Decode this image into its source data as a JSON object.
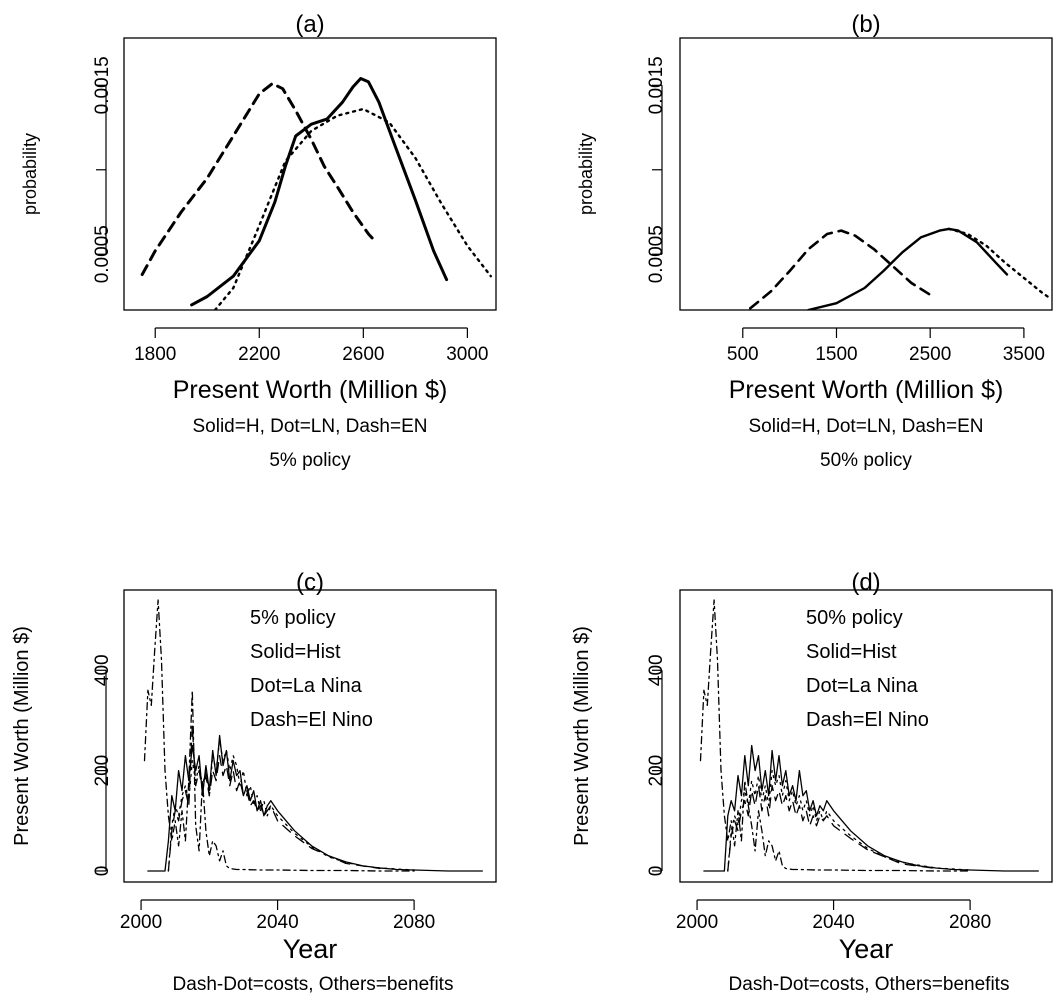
{
  "chart_data": [
    {
      "panel": "a",
      "type": "line",
      "title": "(a)",
      "xlabel": "Present Worth (Million $)",
      "ylabel": "probability",
      "subtitle_lines": [
        "Solid=H, Dot=LN, Dash=EN",
        "5% policy"
      ],
      "xlim": [
        1680,
        3110
      ],
      "ylim": [
        0.00017,
        0.00178
      ],
      "xticks": [
        1800,
        2200,
        2600,
        3000
      ],
      "xtick_labels": [
        "1800",
        "2200",
        "2600",
        "3000"
      ],
      "yticks": [
        0.0005,
        0.001,
        0.0015
      ],
      "ytick_labels": [
        "0.0005",
        "",
        "0.0015"
      ],
      "series": [
        {
          "style": "solid",
          "x": [
            1940,
            2000,
            2100,
            2200,
            2260,
            2300,
            2340,
            2400,
            2460,
            2520,
            2560,
            2590,
            2620,
            2660,
            2720,
            2800,
            2870,
            2920
          ],
          "y": [
            0.0002,
            0.00025,
            0.00037,
            0.00058,
            0.00081,
            0.00102,
            0.0012,
            0.00127,
            0.0013,
            0.0014,
            0.00149,
            0.00154,
            0.00152,
            0.0014,
            0.00115,
            0.00082,
            0.00052,
            0.00035
          ]
        },
        {
          "style": "dot",
          "x": [
            2030,
            2100,
            2200,
            2300,
            2400,
            2500,
            2600,
            2700,
            2800,
            2900,
            3000,
            3090
          ],
          "y": [
            0.00017,
            0.0003,
            0.00067,
            0.00105,
            0.00123,
            0.00132,
            0.00136,
            0.00128,
            0.00107,
            0.0008,
            0.00055,
            0.00037
          ]
        },
        {
          "style": "dash",
          "x": [
            1750,
            1800,
            1900,
            2000,
            2100,
            2200,
            2250,
            2290,
            2340,
            2400,
            2450,
            2500,
            2560,
            2620,
            2650
          ],
          "y": [
            0.00038,
            0.00052,
            0.00075,
            0.00095,
            0.0012,
            0.00145,
            0.00151,
            0.00148,
            0.00135,
            0.00118,
            0.00102,
            0.0009,
            0.00075,
            0.00062,
            0.00057
          ]
        }
      ]
    },
    {
      "panel": "b",
      "type": "line",
      "title": "(b)",
      "xlabel": "Present Worth (Million $)",
      "subtitle_lines": [
        "Solid=H, Dot=LN, Dash=EN",
        "50% policy"
      ],
      "xlim": [
        -170,
        3800
      ],
      "ylim": [
        0.00017,
        0.00178
      ],
      "xticks": [
        500,
        1500,
        2500,
        3500
      ],
      "xtick_labels": [
        "500",
        "1500",
        "2500",
        "3500"
      ],
      "yticks": [
        0.0005,
        0.001,
        0.0015
      ],
      "ytick_labels": [
        "0.0005",
        "",
        "0.0015"
      ],
      "series": [
        {
          "style": "solid",
          "x": [
            1200,
            1500,
            1800,
            2000,
            2200,
            2400,
            2600,
            2700,
            2800,
            3000,
            3200,
            3320
          ],
          "y": [
            0.00017,
            0.00021,
            0.0003,
            0.0004,
            0.00051,
            0.0006,
            0.00064,
            0.00065,
            0.00064,
            0.00057,
            0.00045,
            0.00038
          ]
        },
        {
          "style": "dot",
          "x": [
            2700,
            2900,
            3100,
            3300,
            3500,
            3700,
            3780
          ],
          "y": [
            0.00065,
            0.00062,
            0.00055,
            0.00045,
            0.00036,
            0.00027,
            0.00024
          ]
        },
        {
          "style": "dash",
          "x": [
            580,
            800,
            1000,
            1200,
            1400,
            1550,
            1700,
            1900,
            2100,
            2300,
            2500
          ],
          "y": [
            0.00018,
            0.00028,
            0.0004,
            0.00053,
            0.00062,
            0.00064,
            0.00061,
            0.00053,
            0.00043,
            0.00033,
            0.00026
          ]
        }
      ]
    },
    {
      "panel": "c",
      "type": "line",
      "title": "(c)",
      "xlabel": "Year",
      "ylabel": "Present Worth (Million $)",
      "caption": "Dash-Dot=costs, Others=benefits",
      "legend_lines": [
        "5% policy",
        "Solid=Hist",
        "Dot=La Nina",
        "Dash=El Nino"
      ],
      "xlim": [
        1995,
        2104
      ],
      "ylim": [
        -22,
        560
      ],
      "xticks": [
        2000,
        2040,
        2080
      ],
      "xtick_labels": [
        "2000",
        "2040",
        "2080"
      ],
      "yticks": [
        0,
        200,
        400
      ],
      "ytick_labels": [
        "0",
        "200",
        "400"
      ],
      "series": [
        {
          "style": "solid",
          "x": [
            2002,
            2007,
            2008,
            2009,
            2010,
            2011,
            2012,
            2013,
            2014,
            2015,
            2016,
            2017,
            2018,
            2019,
            2020,
            2021,
            2022,
            2023,
            2024,
            2025,
            2026,
            2027,
            2028,
            2029,
            2030,
            2031,
            2032,
            2033,
            2034,
            2035,
            2036,
            2037,
            2038,
            2040,
            2045,
            2050,
            2055,
            2060,
            2065,
            2070,
            2075,
            2080,
            2090,
            2100
          ],
          "y": [
            0,
            0,
            60,
            150,
            120,
            200,
            160,
            230,
            180,
            250,
            200,
            230,
            150,
            210,
            160,
            240,
            190,
            270,
            210,
            240,
            180,
            220,
            190,
            200,
            150,
            170,
            140,
            160,
            120,
            140,
            110,
            130,
            140,
            120,
            80,
            50,
            30,
            18,
            10,
            6,
            3,
            2,
            0,
            0
          ]
        },
        {
          "style": "dot",
          "x": [
            2008,
            2009,
            2010,
            2011,
            2012,
            2013,
            2014,
            2015,
            2016,
            2017,
            2018,
            2019,
            2020,
            2021,
            2022,
            2023,
            2024,
            2025,
            2026,
            2027,
            2028,
            2029,
            2030,
            2031,
            2032,
            2033,
            2034,
            2035,
            2036,
            2037,
            2038,
            2040,
            2045,
            2050,
            2055,
            2060,
            2065,
            2070,
            2080
          ],
          "y": [
            0,
            90,
            130,
            110,
            150,
            170,
            140,
            220,
            180,
            210,
            170,
            200,
            150,
            230,
            200,
            260,
            220,
            240,
            200,
            230,
            210,
            170,
            200,
            150,
            170,
            130,
            150,
            120,
            140,
            110,
            130,
            110,
            75,
            48,
            28,
            17,
            10,
            6,
            2
          ]
        },
        {
          "style": "dash",
          "x": [
            2008,
            2009,
            2010,
            2011,
            2012,
            2013,
            2014,
            2015,
            2016,
            2017,
            2018,
            2019,
            2020,
            2021,
            2022,
            2023,
            2024,
            2025,
            2026,
            2027,
            2028,
            2029,
            2030,
            2031,
            2032,
            2033,
            2034,
            2035,
            2036,
            2037,
            2038,
            2040,
            2045,
            2050,
            2060,
            2070
          ],
          "y": [
            0,
            80,
            120,
            100,
            140,
            160,
            130,
            290,
            170,
            200,
            160,
            190,
            150,
            200,
            180,
            230,
            190,
            210,
            170,
            200,
            160,
            180,
            150,
            160,
            130,
            140,
            120,
            130,
            110,
            120,
            130,
            100,
            70,
            45,
            15,
            5
          ]
        },
        {
          "style": "dashdot",
          "x": [
            2001,
            2002,
            2003,
            2004,
            2005,
            2006,
            2007,
            2008,
            2009,
            2010,
            2011,
            2012,
            2013,
            2014,
            2015,
            2016,
            2017,
            2018,
            2019,
            2020,
            2021,
            2022,
            2023,
            2024,
            2025,
            2026,
            2027,
            2028,
            2030,
            2035,
            2040,
            2050,
            2060,
            2070,
            2080
          ],
          "y": [
            220,
            360,
            330,
            440,
            540,
            420,
            200,
            110,
            60,
            100,
            50,
            120,
            60,
            180,
            360,
            90,
            40,
            180,
            80,
            30,
            60,
            50,
            20,
            40,
            10,
            5,
            4,
            3,
            3,
            2,
            2,
            1,
            1,
            0,
            0
          ]
        }
      ]
    },
    {
      "panel": "d",
      "type": "line",
      "title": "(d)",
      "xlabel": "Year",
      "ylabel": "Present Worth (Million $)",
      "caption": "Dash-Dot=costs, Others=benefits",
      "legend_lines": [
        "50% policy",
        "Solid=Hist",
        "Dot=La Nina",
        "Dash=El Nino"
      ],
      "xlim": [
        1995,
        2104
      ],
      "ylim": [
        -22,
        560
      ],
      "xticks": [
        2000,
        2040,
        2080
      ],
      "xtick_labels": [
        "2000",
        "2040",
        "2080"
      ],
      "yticks": [
        0,
        200,
        400
      ],
      "ytick_labels": [
        "0",
        "200",
        "400"
      ],
      "series": [
        {
          "style": "solid",
          "x": [
            2002,
            2008,
            2009,
            2010,
            2011,
            2012,
            2013,
            2014,
            2015,
            2016,
            2017,
            2018,
            2019,
            2020,
            2021,
            2022,
            2023,
            2024,
            2025,
            2026,
            2027,
            2028,
            2029,
            2030,
            2031,
            2032,
            2033,
            2034,
            2035,
            2036,
            2037,
            2038,
            2040,
            2045,
            2050,
            2055,
            2060,
            2065,
            2070,
            2075,
            2080,
            2090,
            2100
          ],
          "y": [
            0,
            0,
            110,
            140,
            120,
            190,
            150,
            230,
            170,
            250,
            200,
            230,
            160,
            200,
            150,
            240,
            180,
            230,
            170,
            200,
            150,
            170,
            140,
            200,
            150,
            160,
            120,
            140,
            110,
            130,
            120,
            140,
            120,
            80,
            50,
            30,
            18,
            10,
            6,
            3,
            2,
            0,
            0
          ]
        },
        {
          "style": "dot",
          "x": [
            2009,
            2010,
            2011,
            2012,
            2013,
            2014,
            2015,
            2016,
            2017,
            2018,
            2019,
            2020,
            2021,
            2022,
            2023,
            2024,
            2025,
            2026,
            2027,
            2028,
            2029,
            2030,
            2031,
            2032,
            2033,
            2034,
            2035,
            2036,
            2037,
            2038,
            2040,
            2045,
            2050,
            2055,
            2060,
            2070,
            2080
          ],
          "y": [
            0,
            80,
            110,
            90,
            140,
            160,
            130,
            180,
            150,
            190,
            140,
            170,
            130,
            200,
            170,
            190,
            150,
            180,
            140,
            160,
            130,
            150,
            120,
            140,
            110,
            130,
            100,
            120,
            100,
            120,
            100,
            70,
            45,
            28,
            17,
            6,
            2
          ]
        },
        {
          "style": "dash",
          "x": [
            2009,
            2010,
            2011,
            2012,
            2013,
            2014,
            2015,
            2016,
            2017,
            2018,
            2019,
            2020,
            2021,
            2022,
            2023,
            2024,
            2025,
            2026,
            2027,
            2028,
            2029,
            2030,
            2031,
            2032,
            2033,
            2034,
            2035,
            2036,
            2037,
            2038,
            2040,
            2045,
            2050,
            2060,
            2070
          ],
          "y": [
            0,
            70,
            100,
            80,
            120,
            140,
            110,
            160,
            130,
            170,
            120,
            150,
            110,
            170,
            140,
            160,
            130,
            150,
            120,
            140,
            110,
            130,
            100,
            120,
            90,
            110,
            90,
            110,
            100,
            110,
            90,
            65,
            42,
            14,
            5
          ]
        },
        {
          "style": "dashdot",
          "x": [
            2001,
            2002,
            2003,
            2004,
            2005,
            2006,
            2007,
            2008,
            2009,
            2010,
            2011,
            2012,
            2013,
            2014,
            2015,
            2016,
            2017,
            2018,
            2019,
            2020,
            2021,
            2022,
            2023,
            2024,
            2025,
            2026,
            2027,
            2028,
            2030,
            2035,
            2040,
            2050,
            2060,
            2070,
            2080
          ],
          "y": [
            220,
            360,
            330,
            440,
            540,
            420,
            200,
            110,
            60,
            100,
            50,
            120,
            60,
            180,
            130,
            90,
            40,
            120,
            80,
            30,
            60,
            50,
            20,
            40,
            10,
            5,
            4,
            3,
            3,
            2,
            2,
            1,
            1,
            0,
            0
          ]
        }
      ]
    }
  ]
}
